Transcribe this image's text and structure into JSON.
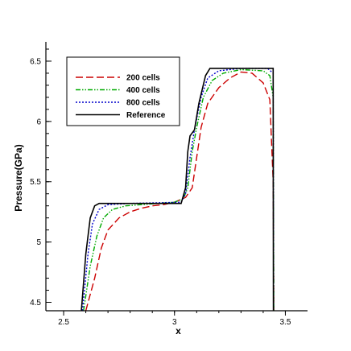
{
  "chart_data": {
    "type": "line",
    "title": "",
    "xlabel": "x",
    "ylabel": "Pressure(GPa)",
    "xlim": [
      2.42,
      3.6
    ],
    "ylim": [
      4.43,
      6.66
    ],
    "xticks": [
      2.5,
      3,
      3.5
    ],
    "xtick_labels": [
      "2.5",
      "3",
      "3.5"
    ],
    "yticks": [
      4.5,
      5,
      5.5,
      6,
      6.5
    ],
    "ytick_labels": [
      "4.5",
      "5",
      "5.5",
      "6",
      "6.5"
    ],
    "grid": false,
    "legend_position": "top-left",
    "series": [
      {
        "name": "200 cells",
        "color": "#cc0000",
        "dash": "dashed",
        "points": [
          [
            2.6,
            4.43
          ],
          [
            2.64,
            4.7
          ],
          [
            2.67,
            4.95
          ],
          [
            2.7,
            5.1
          ],
          [
            2.75,
            5.2
          ],
          [
            2.8,
            5.25
          ],
          [
            2.85,
            5.28
          ],
          [
            2.9,
            5.3
          ],
          [
            2.95,
            5.31
          ],
          [
            3.0,
            5.33
          ],
          [
            3.05,
            5.37
          ],
          [
            3.08,
            5.45
          ],
          [
            3.1,
            5.7
          ],
          [
            3.12,
            5.95
          ],
          [
            3.15,
            6.15
          ],
          [
            3.2,
            6.28
          ],
          [
            3.25,
            6.36
          ],
          [
            3.3,
            6.41
          ],
          [
            3.35,
            6.4
          ],
          [
            3.4,
            6.32
          ],
          [
            3.43,
            6.18
          ],
          [
            3.445,
            5.5
          ],
          [
            3.448,
            4.43
          ]
        ]
      },
      {
        "name": "400 cells",
        "color": "#00aa00",
        "dash": "dashdotdot",
        "points": [
          [
            2.59,
            4.43
          ],
          [
            2.62,
            4.8
          ],
          [
            2.65,
            5.05
          ],
          [
            2.68,
            5.2
          ],
          [
            2.72,
            5.27
          ],
          [
            2.78,
            5.3
          ],
          [
            2.85,
            5.31
          ],
          [
            3.0,
            5.33
          ],
          [
            3.04,
            5.36
          ],
          [
            3.06,
            5.45
          ],
          [
            3.08,
            5.75
          ],
          [
            3.1,
            5.95
          ],
          [
            3.13,
            6.2
          ],
          [
            3.17,
            6.34
          ],
          [
            3.22,
            6.4
          ],
          [
            3.3,
            6.43
          ],
          [
            3.4,
            6.42
          ],
          [
            3.43,
            6.38
          ],
          [
            3.445,
            6.2
          ],
          [
            3.448,
            4.43
          ]
        ]
      },
      {
        "name": "800 cells",
        "color": "#0000cc",
        "dash": "dotted",
        "points": [
          [
            2.585,
            4.43
          ],
          [
            2.61,
            4.9
          ],
          [
            2.63,
            5.15
          ],
          [
            2.66,
            5.27
          ],
          [
            2.7,
            5.31
          ],
          [
            2.8,
            5.32
          ],
          [
            3.03,
            5.33
          ],
          [
            3.05,
            5.4
          ],
          [
            3.07,
            5.7
          ],
          [
            3.09,
            5.93
          ],
          [
            3.12,
            6.2
          ],
          [
            3.15,
            6.36
          ],
          [
            3.2,
            6.42
          ],
          [
            3.3,
            6.44
          ],
          [
            3.42,
            6.44
          ],
          [
            3.445,
            6.4
          ],
          [
            3.447,
            4.43
          ]
        ]
      },
      {
        "name": "Reference",
        "color": "#000000",
        "dash": "solid",
        "points": [
          [
            2.58,
            4.43
          ],
          [
            2.6,
            4.9
          ],
          [
            2.62,
            5.2
          ],
          [
            2.64,
            5.3
          ],
          [
            2.66,
            5.32
          ],
          [
            3.03,
            5.32
          ],
          [
            3.05,
            5.45
          ],
          [
            3.06,
            5.75
          ],
          [
            3.07,
            5.88
          ],
          [
            3.09,
            5.93
          ],
          [
            3.11,
            6.15
          ],
          [
            3.14,
            6.38
          ],
          [
            3.16,
            6.44
          ],
          [
            3.445,
            6.44
          ],
          [
            3.446,
            4.43
          ]
        ]
      }
    ]
  }
}
